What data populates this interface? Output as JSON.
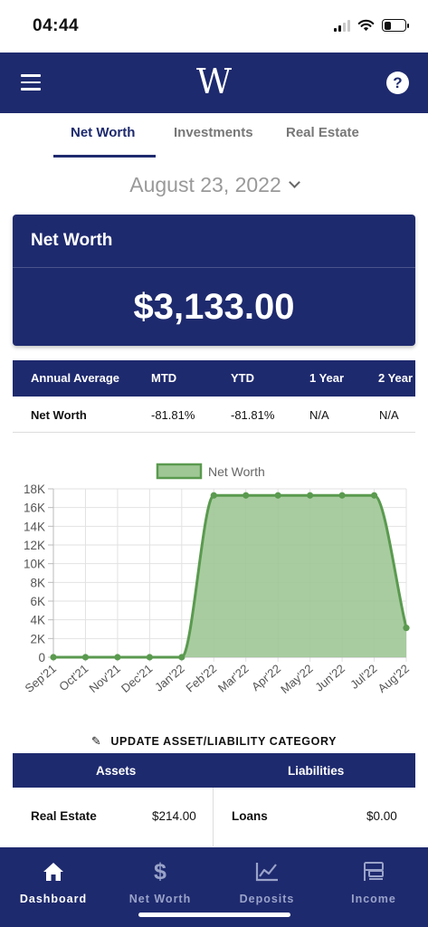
{
  "status_bar": {
    "time": "04:44"
  },
  "header": {
    "logo": "W",
    "help_icon": "?"
  },
  "tabs": [
    {
      "label": "Net Worth",
      "active": true
    },
    {
      "label": "Investments",
      "active": false
    },
    {
      "label": "Real Estate",
      "active": false
    }
  ],
  "date_selector": {
    "value": "August 23, 2022"
  },
  "net_worth_card": {
    "title": "Net Worth",
    "amount": "$3,133.00"
  },
  "performance_table": {
    "headers": [
      "Annual Average",
      "MTD",
      "YTD",
      "1 Year",
      "2 Year"
    ],
    "row": {
      "label": "Net Worth",
      "mtd": "-81.81%",
      "ytd": "-81.81%",
      "one_year": "N/A",
      "two_year": "N/A"
    }
  },
  "chart_data": {
    "type": "area",
    "categories": [
      "Sep'21",
      "Oct'21",
      "Nov'21",
      "Dec'21",
      "Jan'22",
      "Feb'22",
      "Mar'22",
      "Apr'22",
      "May'22",
      "Jun'22",
      "Jul'22",
      "Aug'22"
    ],
    "series": [
      {
        "name": "Net Worth",
        "values": [
          0,
          0,
          0,
          0,
          0,
          17300,
          17300,
          17300,
          17300,
          17300,
          17300,
          3133
        ]
      }
    ],
    "y_ticks": [
      "0",
      "2K",
      "4K",
      "6K",
      "8K",
      "10K",
      "12K",
      "14K",
      "16K",
      "18K"
    ],
    "ylim": [
      0,
      18000
    ],
    "legend_position": "top-center",
    "grid": true,
    "colors": {
      "line": "#5a9a4f",
      "fill": "#9fc796"
    }
  },
  "update_link": {
    "label": "UPDATE ASSET/LIABILITY CATEGORY"
  },
  "assets_liabilities": {
    "assets_header": "Assets",
    "liabilities_header": "Liabilities",
    "asset_item": {
      "label": "Real Estate",
      "value": "$214.00"
    },
    "liability_item": {
      "label": "Loans",
      "value": "$0.00"
    }
  },
  "bottom_nav": [
    {
      "label": "Dashboard",
      "icon": "home-icon",
      "active": true
    },
    {
      "label": "Net Worth",
      "icon": "dollar-icon",
      "active": false
    },
    {
      "label": "Deposits",
      "icon": "line-chart-icon",
      "active": false
    },
    {
      "label": "Income",
      "icon": "income-icon",
      "active": false
    }
  ],
  "colors": {
    "primary": "#1e2a6e",
    "accent_green": "#5a9a4f"
  }
}
